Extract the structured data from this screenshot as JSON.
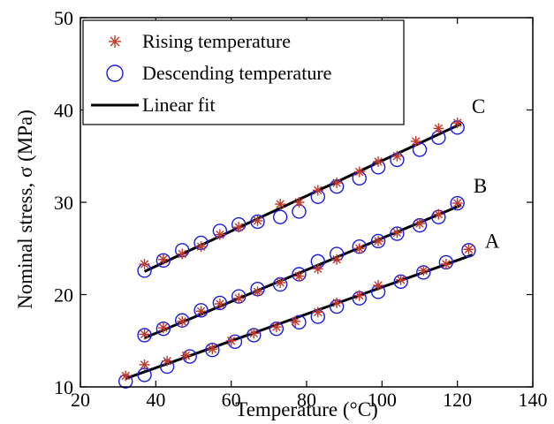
{
  "chart_data": {
    "type": "scatter",
    "title": "",
    "xlabel": "Temperature (°C)",
    "ylabel": "Nominal stress, σ (MPa)",
    "xlim": [
      20,
      140
    ],
    "ylim": [
      10,
      50
    ],
    "xticks": [
      20,
      40,
      60,
      80,
      100,
      120,
      140
    ],
    "yticks": [
      10,
      20,
      30,
      40,
      50
    ],
    "grid": false,
    "legend_position": "top-left",
    "legend": [
      {
        "label": "Rising temperature",
        "marker": "asterisk",
        "color": "#c0392b"
      },
      {
        "label": "Descending temperature",
        "marker": "circle",
        "color": "#1a1ae0"
      },
      {
        "label": "Linear fit",
        "marker": "line",
        "color": "#000000"
      }
    ],
    "groups": [
      {
        "label": "C",
        "rising": {
          "x": [
            37,
            42,
            47,
            52,
            57,
            62,
            67,
            73,
            78,
            83,
            88,
            94,
            99,
            104,
            109,
            115,
            120
          ],
          "y": [
            23.3,
            23.8,
            24.4,
            25.2,
            26.5,
            27.3,
            28.0,
            29.8,
            30.0,
            31.3,
            32.1,
            33.3,
            34.4,
            35.0,
            36.6,
            38.0,
            38.6
          ]
        },
        "descending": {
          "x": [
            37,
            42,
            47,
            52,
            57,
            62,
            67,
            73,
            78,
            83,
            88,
            94,
            99,
            104,
            110,
            115,
            120
          ],
          "y": [
            22.6,
            23.7,
            24.8,
            25.6,
            26.9,
            27.6,
            27.9,
            28.4,
            29.0,
            30.6,
            31.7,
            32.6,
            33.8,
            34.6,
            35.7,
            37.0,
            38.1
          ]
        },
        "fit": {
          "x": [
            37,
            121
          ],
          "y": [
            22.5,
            38.5
          ]
        }
      },
      {
        "label": "B",
        "rising": {
          "x": [
            37,
            42,
            47,
            52,
            57,
            62,
            67,
            73,
            78,
            83,
            88,
            94,
            99,
            104,
            110,
            115,
            120
          ],
          "y": [
            15.7,
            16.4,
            17.1,
            18.2,
            19.0,
            19.6,
            20.3,
            21.3,
            22.0,
            22.8,
            23.8,
            25.0,
            25.8,
            26.7,
            27.7,
            28.7,
            29.9
          ]
        },
        "descending": {
          "x": [
            37,
            42,
            47,
            52,
            57,
            62,
            67,
            73,
            78,
            83,
            88,
            94,
            99,
            104,
            110,
            115,
            120
          ],
          "y": [
            15.6,
            16.3,
            17.2,
            18.3,
            19.1,
            19.8,
            20.6,
            21.1,
            22.2,
            23.6,
            24.4,
            25.2,
            25.8,
            26.6,
            27.5,
            28.4,
            29.9
          ]
        },
        "fit": {
          "x": [
            37,
            121
          ],
          "y": [
            15.3,
            29.7
          ]
        }
      },
      {
        "label": "A",
        "rising": {
          "x": [
            32,
            37,
            43,
            48,
            55,
            60,
            66,
            72,
            77,
            83,
            88,
            94,
            99,
            105,
            111,
            117,
            123
          ],
          "y": [
            11.2,
            12.4,
            12.8,
            13.4,
            14.1,
            15.0,
            15.8,
            16.5,
            17.1,
            18.1,
            19.1,
            19.9,
            21.0,
            21.6,
            22.6,
            23.3,
            24.9
          ]
        },
        "descending": {
          "x": [
            32,
            37,
            43,
            49,
            55,
            61,
            66,
            72,
            78,
            83,
            88,
            94,
            99,
            105,
            111,
            117,
            123
          ],
          "y": [
            10.6,
            11.3,
            12.2,
            13.3,
            14.0,
            14.9,
            15.6,
            16.3,
            17.0,
            17.6,
            18.7,
            19.6,
            20.3,
            21.4,
            22.4,
            23.5,
            24.8
          ]
        },
        "fit": {
          "x": [
            32,
            124
          ],
          "y": [
            10.9,
            24.3
          ]
        }
      }
    ]
  }
}
